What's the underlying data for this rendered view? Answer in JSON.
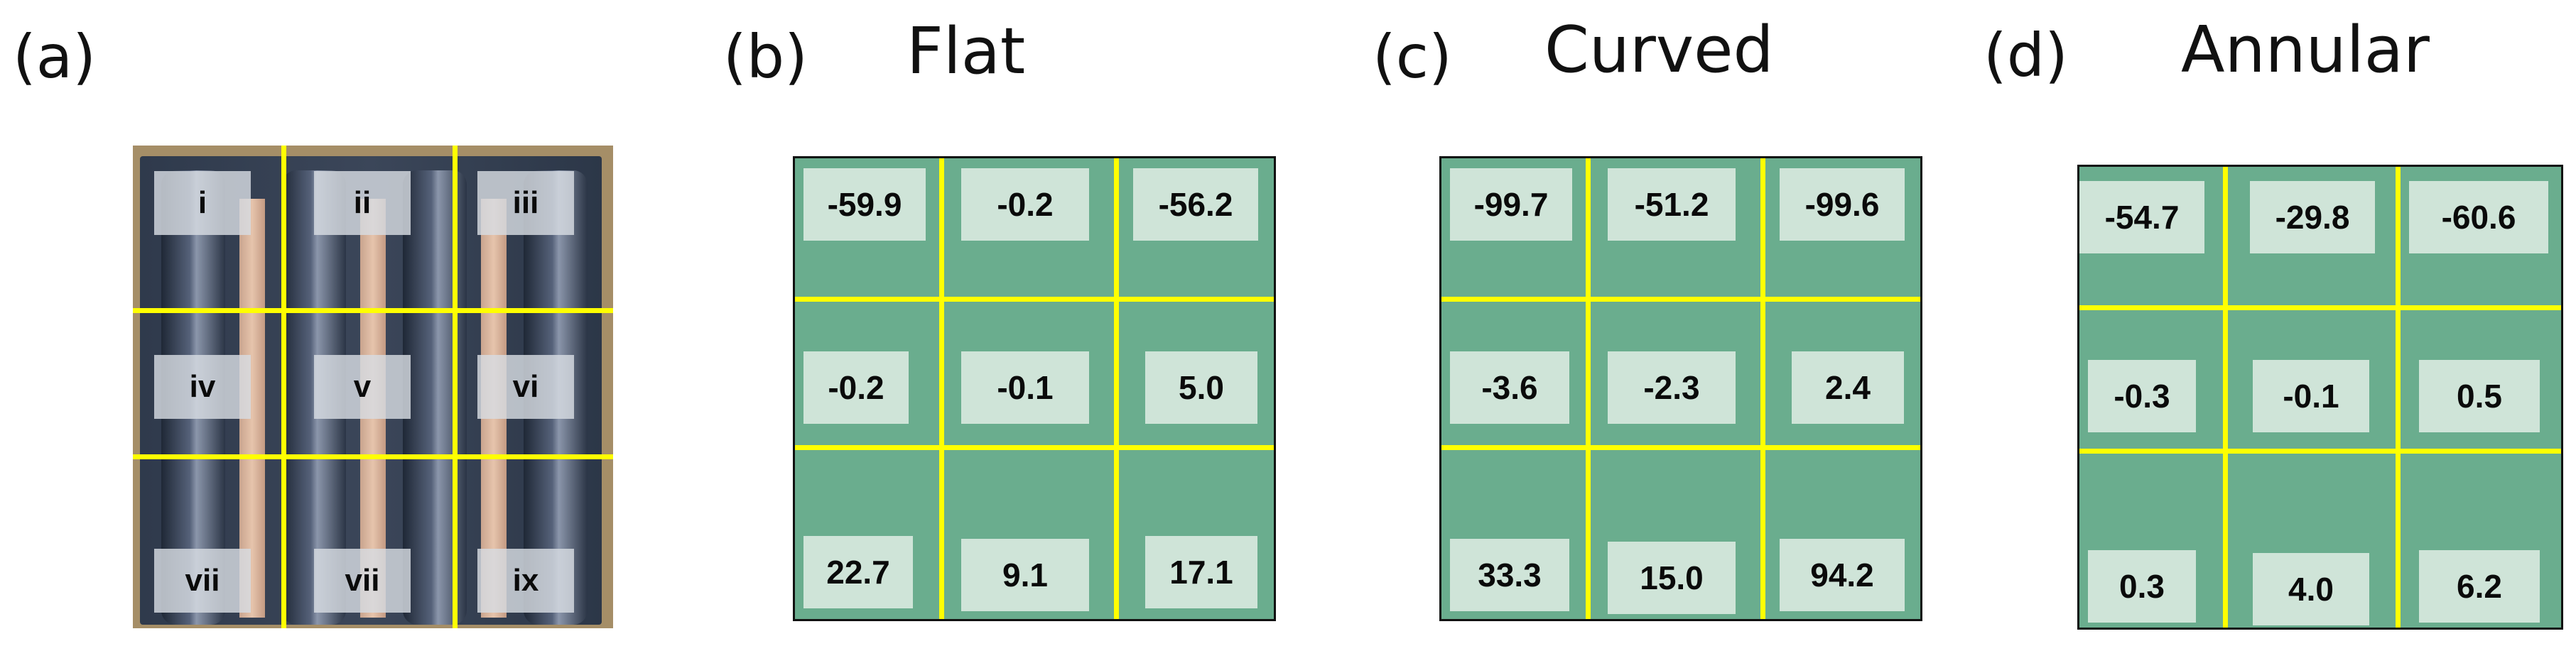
{
  "panels": {
    "a": {
      "label": "(a)",
      "tags": [
        "i",
        "ii",
        "iii",
        "iv",
        "v",
        "vi",
        "vii",
        "vii",
        "ix"
      ]
    },
    "b": {
      "label": "(b)",
      "title": "Flat",
      "values": [
        "-59.9",
        "-0.2",
        "-56.2",
        "-0.2",
        "-0.1",
        "5.0",
        "22.7",
        "9.1",
        "17.1"
      ]
    },
    "c": {
      "label": "(c)",
      "title": "Curved",
      "values": [
        "-99.7",
        "-51.2",
        "-99.6",
        "-3.6",
        "-2.3",
        "2.4",
        "33.3",
        "15.0",
        "94.2"
      ]
    },
    "d": {
      "label": "(d)",
      "title": "Annular",
      "values": [
        "-54.7",
        "-29.8",
        "-60.6",
        "-0.3",
        "-0.1",
        "0.5",
        "0.3",
        "4.0",
        "6.2"
      ]
    }
  },
  "colors": {
    "grid_fill": "#6aad8e",
    "cell_fill": "#cfe4d8",
    "divider": "#ffff00",
    "border": "#111111"
  }
}
